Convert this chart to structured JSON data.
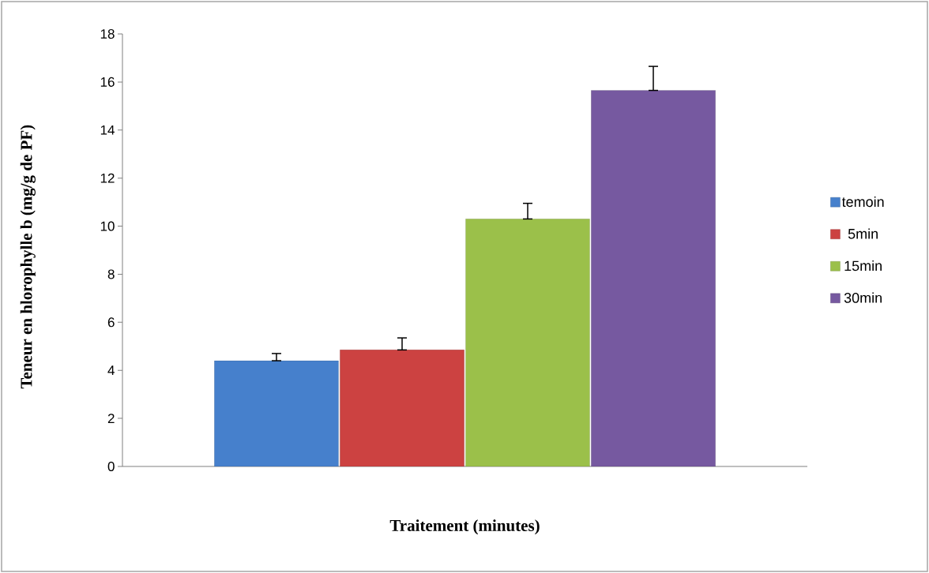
{
  "chart_data": {
    "type": "bar",
    "xlabel": "Traitement (minutes)",
    "ylabel": "Teneur en hlorophylle b (mg/g de PF)",
    "categories": [
      null
    ],
    "ylim": [
      0,
      18
    ],
    "yticks": [
      0,
      2,
      4,
      6,
      8,
      10,
      12,
      14,
      16,
      18
    ],
    "legend": "right",
    "grid": false,
    "series": [
      {
        "name": "temoin",
        "color": "#4680cc",
        "values": [
          4.4
        ],
        "errors": [
          [
            4.4,
            4.7
          ]
        ]
      },
      {
        "name": "5min",
        "color": "#cc4241",
        "values": [
          4.85
        ],
        "errors": [
          [
            4.85,
            5.35
          ]
        ]
      },
      {
        "name": "15min",
        "color": "#9bc04a",
        "values": [
          10.3
        ],
        "errors": [
          [
            10.3,
            10.95
          ]
        ]
      },
      {
        "name": "30min",
        "color": "#7659a0",
        "values": [
          15.65
        ],
        "errors": [
          [
            15.65,
            16.65
          ]
        ]
      }
    ]
  }
}
